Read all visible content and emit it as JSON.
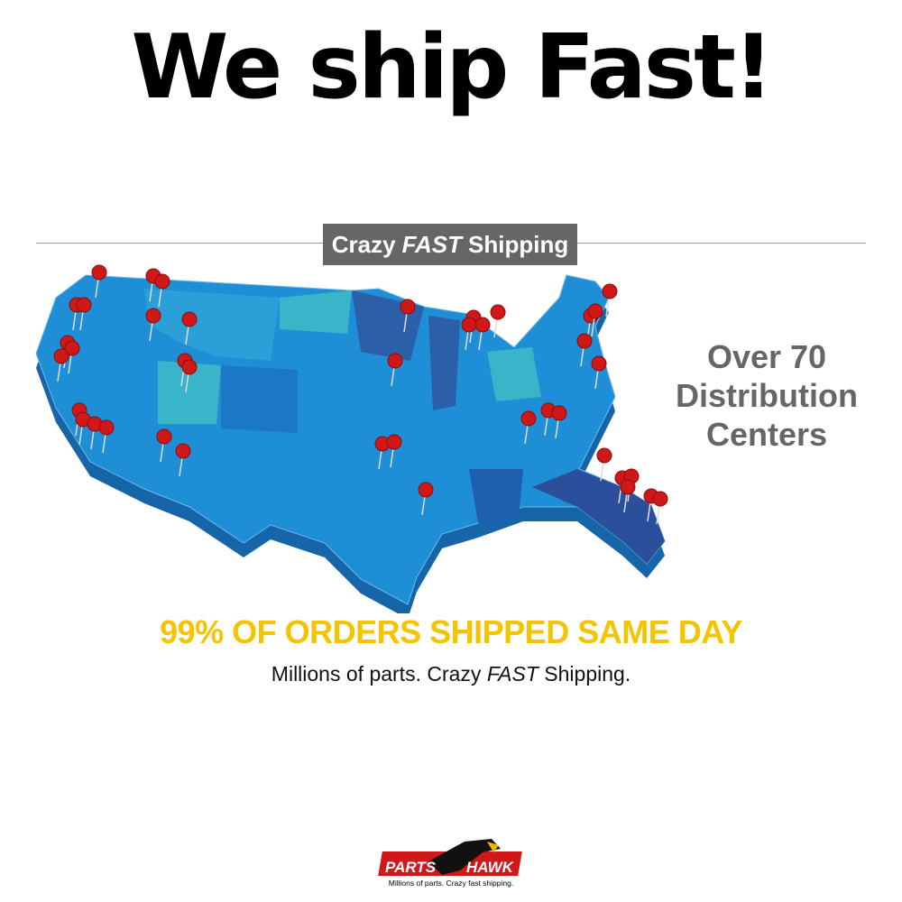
{
  "headline": "We ship Fast!",
  "banner": {
    "prefix": "Crazy",
    "emphasis": "FAST",
    "suffix": "Shipping"
  },
  "side_text": [
    "Over 70",
    "Distribution",
    "Centers"
  ],
  "callout": "99% OF ORDERS SHIPPED SAME DAY",
  "subline": {
    "prefix": "Millions of parts. Crazy",
    "emphasis": "FAST",
    "suffix": "Shipping."
  },
  "logo": {
    "left": "PARTS",
    "right": "HAWK",
    "tagline": "Millions of parts. Crazy fast shipping."
  },
  "colors": {
    "map": "#1e8fd6",
    "pin": "#d01818",
    "callout": "#f5c400",
    "banner": "#666666"
  }
}
